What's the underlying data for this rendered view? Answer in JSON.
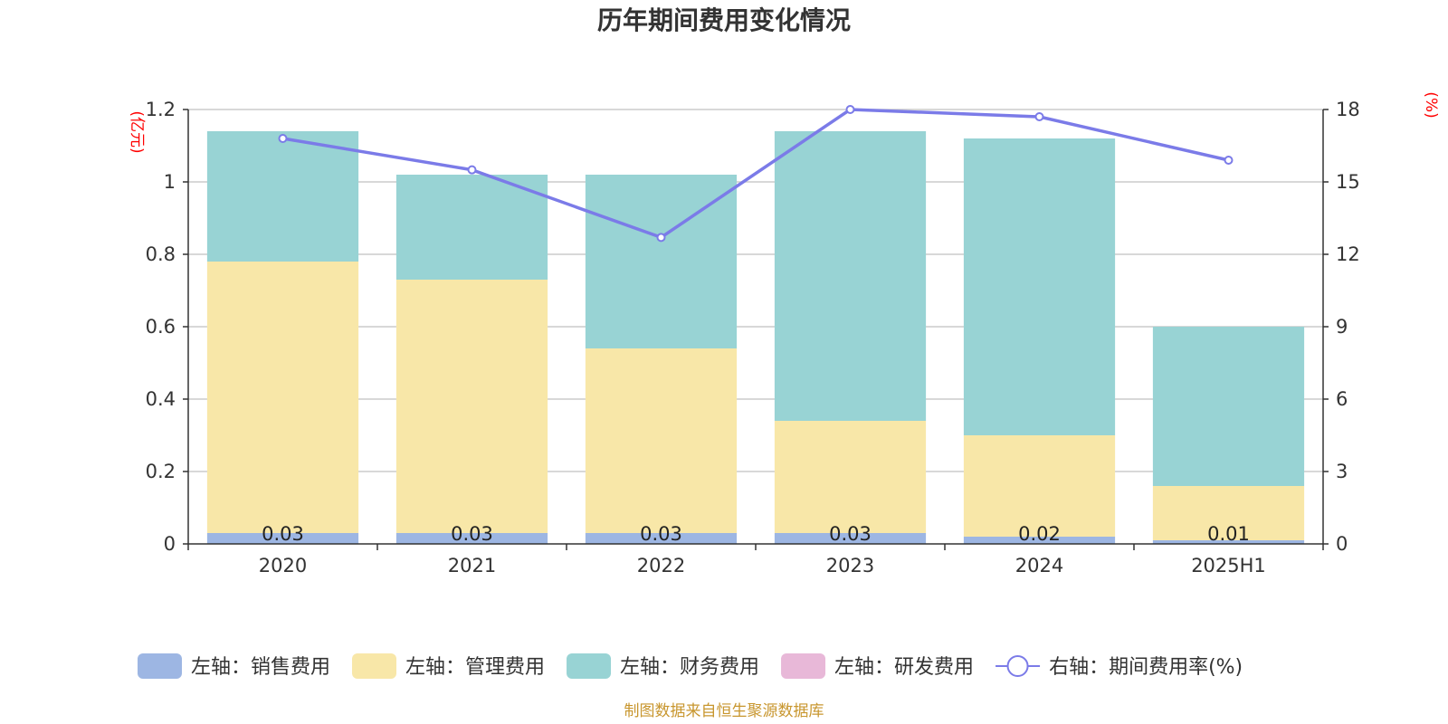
{
  "chart_data": {
    "type": "bar",
    "stacked": true,
    "title": "历年期间费用变化情况",
    "categories": [
      "2020",
      "2021",
      "2022",
      "2023",
      "2024",
      "2025H1"
    ],
    "y_left": {
      "unit": "(亿元)",
      "ylim": [
        0,
        1.2
      ],
      "ticks": [
        "0",
        "0.2",
        "0.4",
        "0.6",
        "0.8",
        "1",
        "1.2"
      ]
    },
    "y_right": {
      "unit": "(%)",
      "ylim": [
        0,
        18
      ],
      "ticks": [
        "0",
        "3",
        "6",
        "9",
        "12",
        "15",
        "18"
      ]
    },
    "series": [
      {
        "name": "左轴：销售费用",
        "color": "#9db6e3",
        "values": [
          0.03,
          0.03,
          0.03,
          0.03,
          0.02,
          0.01
        ],
        "labels": [
          "0.03",
          "0.03",
          "0.03",
          "0.03",
          "0.02",
          "0.01"
        ]
      },
      {
        "name": "左轴：管理费用",
        "color": "#f8e7a8",
        "values": [
          0.75,
          0.7,
          0.51,
          0.31,
          0.28,
          0.15
        ]
      },
      {
        "name": "左轴：财务费用",
        "color": "#98d3d4",
        "values": [
          0.36,
          0.29,
          0.48,
          0.8,
          0.82,
          0.44
        ]
      },
      {
        "name": "左轴：研发费用",
        "color": "#e8b8d8",
        "values": [
          0,
          0,
          0,
          0,
          0,
          0
        ]
      }
    ],
    "line": {
      "name": "右轴：期间费用率(%)",
      "color": "#7b7be8",
      "values": [
        16.8,
        15.5,
        12.7,
        18.0,
        17.7,
        15.9
      ]
    },
    "grid": true,
    "legend_position": "bottom"
  },
  "source_note": "制图数据来自恒生聚源数据库"
}
